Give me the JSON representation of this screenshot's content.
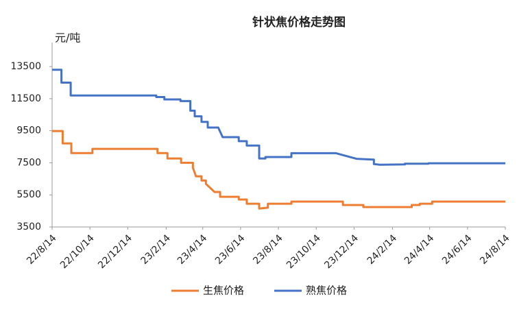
{
  "chart_data": {
    "type": "line",
    "title": "针状焦价格走势图",
    "y_label": "元/吨",
    "xlim": [
      "22/8/14",
      "24/8/14"
    ],
    "xticks": [
      "22/8/14",
      "22/10/14",
      "22/12/14",
      "23/2/14",
      "23/4/14",
      "23/6/14",
      "23/8/14",
      "23/10/14",
      "23/12/14",
      "24/2/14",
      "24/4/14",
      "24/6/14",
      "24/8/14"
    ],
    "ylim": [
      3500,
      15000
    ],
    "yticks": [
      3500,
      5500,
      7500,
      9500,
      11500,
      13500
    ],
    "grid": false,
    "legend": "bottom",
    "series": [
      {
        "name": "生焦价格",
        "color": "#ed7d31",
        "x": [
          "22/8/14",
          "22/8/31",
          "22/8/31",
          "22/9/14",
          "22/9/14",
          "22/10/18",
          "22/10/18",
          "23/1/31",
          "23/1/31",
          "23/2/16",
          "23/2/16",
          "23/3/10",
          "23/3/10",
          "23/3/29",
          "23/3/29",
          "23/4/3",
          "23/4/12",
          "23/4/12",
          "23/4/19",
          "23/4/19",
          "23/4/27",
          "23/5/3",
          "23/5/12",
          "23/5/12",
          "23/6/11",
          "23/6/11",
          "23/6/24",
          "23/6/24",
          "23/7/14",
          "23/7/14",
          "23/7/28",
          "23/7/28",
          "23/9/4",
          "23/9/4",
          "23/11/26",
          "23/11/26",
          "23/12/29",
          "23/12/29",
          "24/3/16",
          "24/3/16",
          "24/3/29",
          "24/3/29",
          "24/4/18",
          "24/4/18",
          "24/8/14"
        ],
        "values": [
          9480,
          9480,
          8710,
          8710,
          8110,
          8110,
          8370,
          8370,
          8110,
          8110,
          7770,
          7770,
          7500,
          7500,
          7200,
          6660,
          6660,
          6400,
          6400,
          6190,
          5900,
          5680,
          5680,
          5380,
          5380,
          5210,
          5210,
          4950,
          4950,
          4650,
          4700,
          4950,
          4950,
          5080,
          5080,
          4870,
          4870,
          4740,
          4740,
          4870,
          4870,
          4950,
          4950,
          5080,
          5080
        ]
      },
      {
        "name": "熟焦价格",
        "color": "#4472c4",
        "x": [
          "22/8/14",
          "22/8/29",
          "22/8/29",
          "22/9/13",
          "22/9/13",
          "23/1/29",
          "23/1/29",
          "23/2/11",
          "23/2/11",
          "23/3/9",
          "23/3/9",
          "23/3/25",
          "23/3/25",
          "23/4/1",
          "23/4/1",
          "23/4/12",
          "23/4/12",
          "23/4/22",
          "23/4/22",
          "23/5/9",
          "23/5/16",
          "23/6/11",
          "23/6/11",
          "23/6/24",
          "23/6/24",
          "23/7/14",
          "23/7/14",
          "23/7/24",
          "23/7/24",
          "23/9/4",
          "23/9/4",
          "23/11/15",
          "23/11/26",
          "23/12/18",
          "24/1/15",
          "24/1/15",
          "24/1/25",
          "24/3/5",
          "24/3/5",
          "24/4/12",
          "24/4/12",
          "24/8/14"
        ],
        "values": [
          13300,
          13300,
          12500,
          12500,
          11700,
          11700,
          11600,
          11600,
          11450,
          11450,
          11350,
          11350,
          10750,
          10750,
          10400,
          10400,
          10050,
          10050,
          9700,
          9700,
          9100,
          9100,
          8850,
          8850,
          8580,
          8580,
          7770,
          7770,
          7860,
          7860,
          8100,
          8100,
          7980,
          7750,
          7700,
          7420,
          7380,
          7400,
          7440,
          7440,
          7470,
          7470
        ]
      }
    ]
  }
}
